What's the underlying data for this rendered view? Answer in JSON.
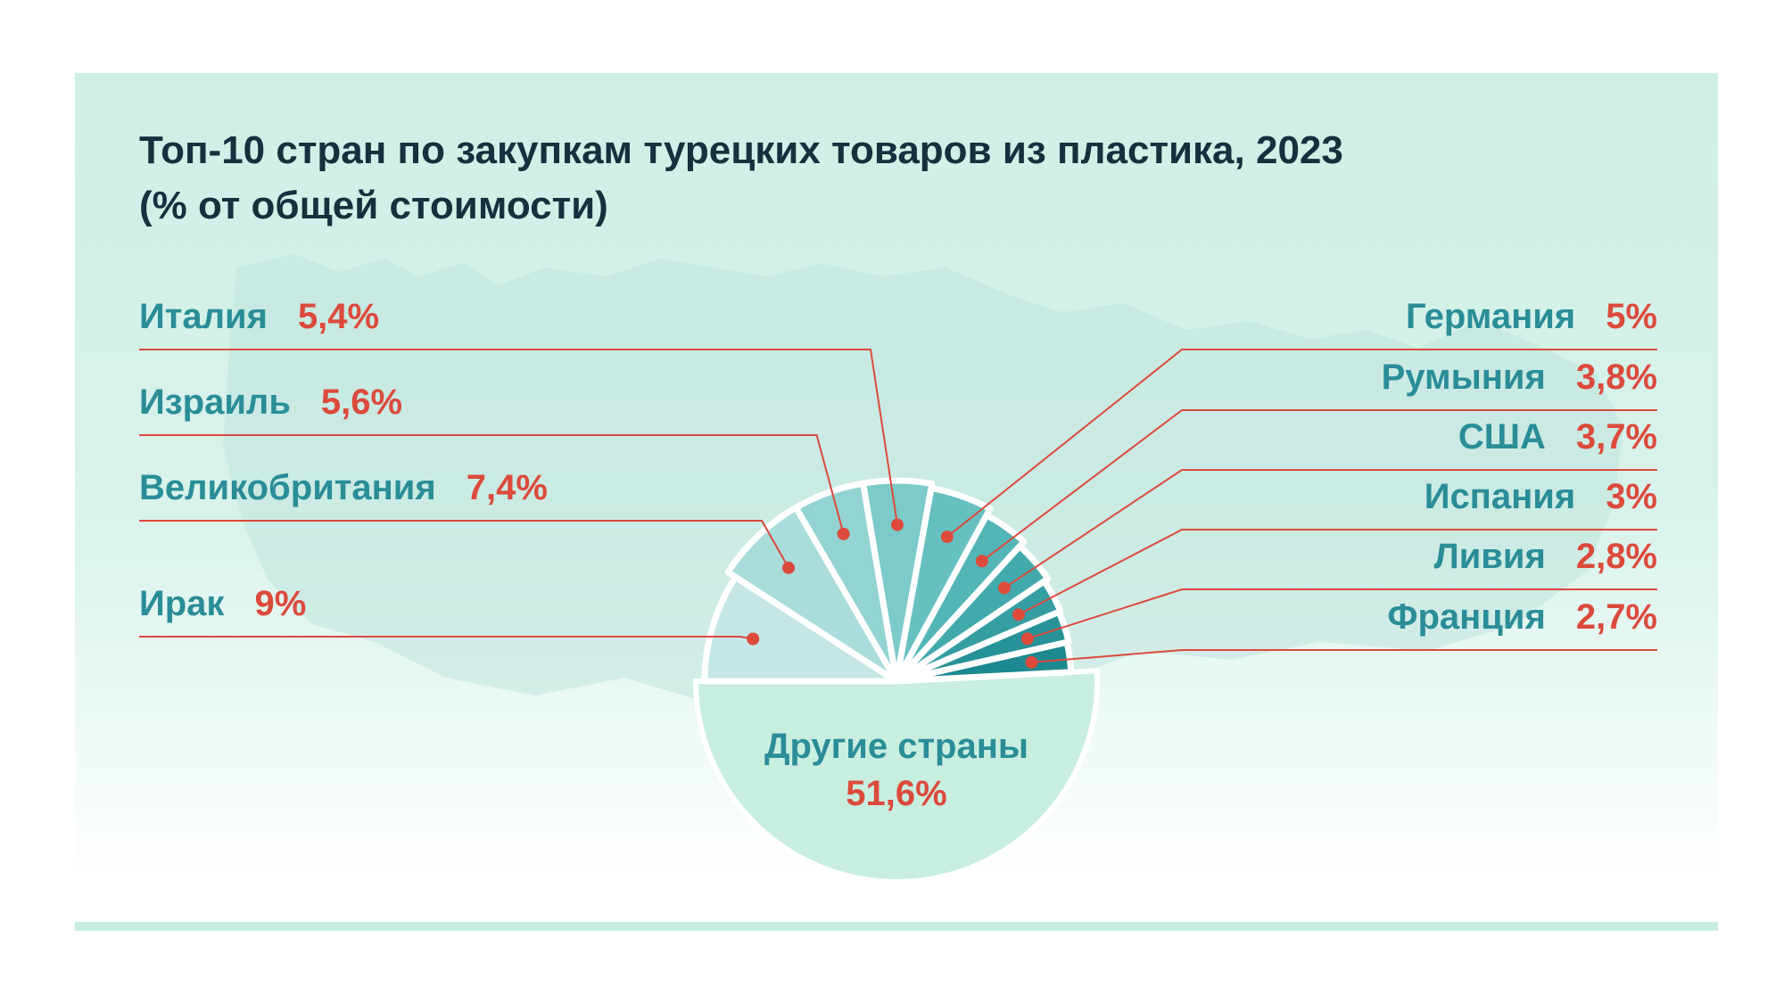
{
  "chart_data": {
    "type": "pie",
    "title_line1": "Топ-10 стран по закупкам турецких товаров из пластика, 2023",
    "title_line2": "(% от общей стоимости)",
    "unit": "%",
    "slices": [
      {
        "name": "Другие страны",
        "label": "51,6%",
        "value": 51.6,
        "color": "#c8eee0",
        "side": "center"
      },
      {
        "name": "Ирак",
        "label": "9%",
        "value": 9.0,
        "color": "#c6e6e5",
        "side": "left"
      },
      {
        "name": "Великобритания",
        "label": "7,4%",
        "value": 7.4,
        "color": "#a9dcdb",
        "side": "left"
      },
      {
        "name": "Израиль",
        "label": "5,6%",
        "value": 5.6,
        "color": "#93d3d2",
        "side": "left"
      },
      {
        "name": "Италия",
        "label": "5,4%",
        "value": 5.4,
        "color": "#7ccac9",
        "side": "left"
      },
      {
        "name": "Германия",
        "label": "5%",
        "value": 5.0,
        "color": "#66c0c0",
        "side": "right"
      },
      {
        "name": "Румыния",
        "label": "3,8%",
        "value": 3.8,
        "color": "#53b5b6",
        "side": "right"
      },
      {
        "name": "США",
        "label": "3,7%",
        "value": 3.7,
        "color": "#42aaac",
        "side": "right"
      },
      {
        "name": "Испания",
        "label": "3%",
        "value": 3.0,
        "color": "#349ea2",
        "side": "right"
      },
      {
        "name": "Ливия",
        "label": "2,8%",
        "value": 2.8,
        "color": "#279398",
        "side": "right"
      },
      {
        "name": "Франция",
        "label": "2,7%",
        "value": 2.7,
        "color": "#1b898f",
        "side": "right"
      }
    ],
    "colors": {
      "name_text": "#2a8d98",
      "value_text": "#dc4a3c",
      "leader_line": "#dc4a3c",
      "title_text": "#14313d"
    }
  }
}
